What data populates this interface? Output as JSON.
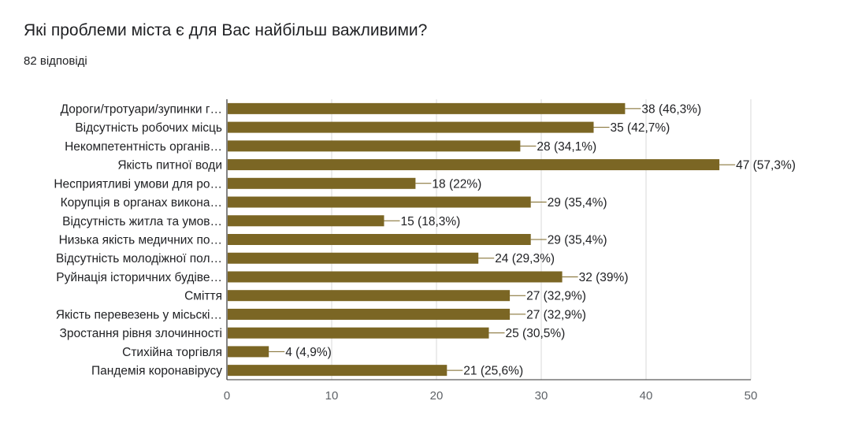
{
  "question": {
    "title": "Які проблеми міста є для Вас найбільш важливими?",
    "responses": "82 відповіді"
  },
  "colors": {
    "bar": "#7b6624",
    "grid": "#d9d9d9",
    "axis": "#333333",
    "connector": "#7b6624"
  },
  "chart_data": {
    "type": "bar",
    "orientation": "horizontal",
    "title": "Які проблеми міста є для Вас найбільш важливими?",
    "categories": [
      "Дороги/тротуари/зупинки г…",
      "Відсутність робочих місць",
      "Некомпетентність органів…",
      "Якість питної води",
      "Несприятливі умови для ро…",
      "Корупція в органах викона…",
      "Відсутність житла та умов…",
      "Низька якість медичних по…",
      "Відсутність молодіжної пол…",
      "Руйнація історичних будіве…",
      "Сміття",
      "Якість перевезень у місьскі…",
      "Зростання рівня злочинності",
      "Стихійна торгівля",
      "Пандемія коронавірусу"
    ],
    "values": [
      38,
      35,
      28,
      47,
      18,
      29,
      15,
      29,
      24,
      32,
      27,
      27,
      25,
      4,
      21
    ],
    "value_labels": [
      "38 (46,3%)",
      "35 (42,7%)",
      "28 (34,1%)",
      "47 (57,3%)",
      "18 (22%)",
      "29 (35,4%)",
      "15 (18,3%)",
      "29 (35,4%)",
      "24 (29,3%)",
      "32 (39%)",
      "27 (32,9%)",
      "27 (32,9%)",
      "25 (30,5%)",
      "4 (4,9%)",
      "21 (25,6%)"
    ],
    "xlim": [
      0,
      50
    ],
    "xticks": [
      0,
      10,
      20,
      30,
      40,
      50
    ],
    "grid": true,
    "legend": "none"
  }
}
